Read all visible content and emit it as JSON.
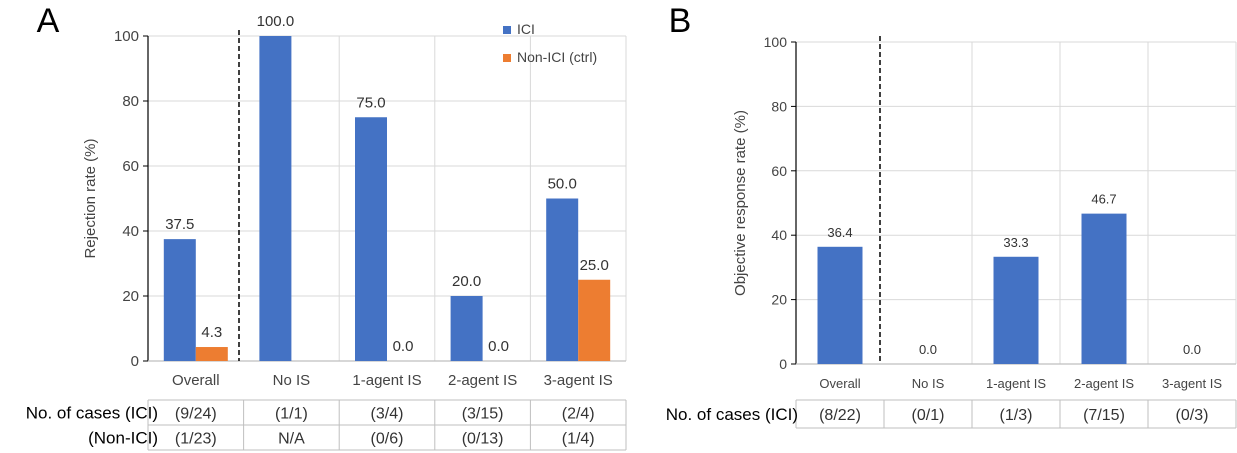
{
  "chart_data": [
    {
      "type": "bar",
      "panel_label": "A",
      "ylabel": "Rejection rate (%)",
      "ylim": [
        0,
        100
      ],
      "yticks": [
        0,
        20,
        40,
        60,
        80,
        100
      ],
      "grid": true,
      "legend_position": "top-right",
      "categories": [
        "Overall",
        "No IS",
        "1-agent IS",
        "2-agent IS",
        "3-agent IS"
      ],
      "series": [
        {
          "name": "ICI",
          "color": "#4472C4",
          "values": [
            37.5,
            100.0,
            75.0,
            20.0,
            50.0
          ],
          "labels": [
            "37.5",
            "100.0",
            "75.0",
            "20.0",
            "50.0"
          ]
        },
        {
          "name": "Non-ICI (ctrl)",
          "color": "#ED7D31",
          "values": [
            4.3,
            null,
            0.0,
            0.0,
            25.0
          ],
          "labels": [
            "4.3",
            "",
            "0.0",
            "0.0",
            "25.0"
          ]
        }
      ],
      "table": {
        "rows": [
          {
            "header": "No. of cases (ICI)",
            "cells": [
              "(9/24)",
              "(1/1)",
              "(3/4)",
              "(3/15)",
              "(2/4)"
            ]
          },
          {
            "header": "(Non-ICI)",
            "cells": [
              "(1/23)",
              "N/A",
              "(0/6)",
              "(0/13)",
              "(1/4)"
            ]
          }
        ]
      }
    },
    {
      "type": "bar",
      "panel_label": "B",
      "ylabel": "Objective response rate (%)",
      "ylim": [
        0,
        100
      ],
      "yticks": [
        0,
        20,
        40,
        60,
        80,
        100
      ],
      "grid": true,
      "categories": [
        "Overall",
        "No IS",
        "1-agent IS",
        "2-agent IS",
        "3-agent IS"
      ],
      "series": [
        {
          "name": "",
          "color": "#4472C4",
          "values": [
            36.4,
            0.0,
            33.3,
            46.7,
            0.0
          ],
          "labels": [
            "36.4",
            "0.0",
            "33.3",
            "46.7",
            "0.0"
          ]
        }
      ],
      "table": {
        "rows": [
          {
            "header": "No. of cases (ICI)",
            "cells": [
              "(8/22)",
              "(0/1)",
              "(1/3)",
              "(7/15)",
              "(0/3)"
            ]
          }
        ]
      }
    }
  ]
}
